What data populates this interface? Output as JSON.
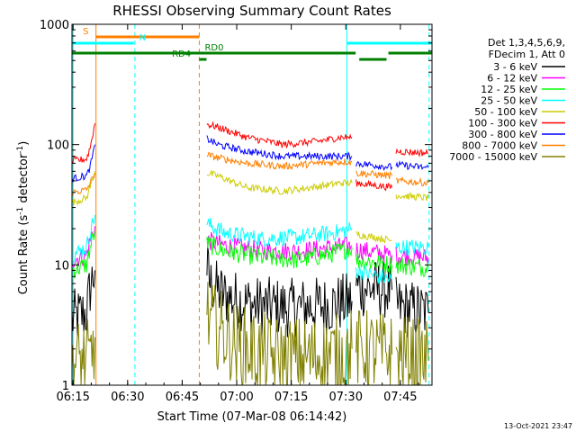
{
  "chart_data": {
    "type": "line",
    "title": "RHESSI Observing Summary Count Rates",
    "xlabel": "Start Time (07-Mar-08 06:14:42)",
    "ylabel_main": "Count Rate (s",
    "ylabel_sup": "-1",
    "ylabel_rest": " detector",
    "ylabel_sup2": "-1",
    "ylabel_end": ")",
    "x_unit": "minutes after 06:14:42",
    "xlim": [
      0,
      99
    ],
    "ylim": [
      1,
      1000
    ],
    "yscale": "log",
    "x_ticks": [
      {
        "t": 0.3,
        "label": "06:15"
      },
      {
        "t": 15.3,
        "label": "06:30"
      },
      {
        "t": 30.3,
        "label": "06:45"
      },
      {
        "t": 45.3,
        "label": "07:00"
      },
      {
        "t": 60.3,
        "label": "07:15"
      },
      {
        "t": 75.3,
        "label": "07:30"
      },
      {
        "t": 90.3,
        "label": "07:45"
      }
    ],
    "y_ticks": [
      {
        "v": 1,
        "label": "1"
      },
      {
        "v": 10,
        "label": "10"
      },
      {
        "v": 100,
        "label": "100"
      },
      {
        "v": 1000,
        "label": "1000"
      }
    ],
    "legend_header": [
      "Det 1,3,4,5,6,9,",
      "FDecim 1, Att 0"
    ],
    "series": [
      {
        "name": "3 - 6 keV",
        "color": "#000000",
        "noise": 0.25,
        "points": [
          [
            0,
            3.5
          ],
          [
            4,
            4.0
          ],
          [
            5,
            6.5
          ],
          [
            6.3,
            9.0
          ],
          [
            6.4,
            null
          ],
          [
            37.0,
            null
          ],
          [
            37.1,
            9.5
          ],
          [
            38,
            7.0
          ],
          [
            42,
            5.5
          ],
          [
            50,
            4.6
          ],
          [
            60,
            4.4
          ],
          [
            70,
            4.6
          ],
          [
            77,
            5.0
          ],
          [
            77.3,
            null
          ],
          [
            78,
            null
          ],
          [
            78.1,
            6.5
          ],
          [
            88,
            6.2
          ],
          [
            88.3,
            null
          ],
          [
            89,
            null
          ],
          [
            89.1,
            4.5
          ],
          [
            98,
            4.0
          ]
        ]
      },
      {
        "name": "6 - 12 keV",
        "color": "#ff00ff",
        "noise": 0.08,
        "points": [
          [
            0,
            11
          ],
          [
            4,
            12
          ],
          [
            5,
            16
          ],
          [
            6.3,
            21
          ],
          [
            6.4,
            null
          ],
          [
            37.0,
            null
          ],
          [
            37.1,
            16
          ],
          [
            42,
            14.5
          ],
          [
            52,
            13.2
          ],
          [
            62,
            13.0
          ],
          [
            72,
            14.0
          ],
          [
            77,
            14.5
          ],
          [
            77.3,
            null
          ],
          [
            78,
            null
          ],
          [
            78.1,
            13.5
          ],
          [
            88,
            12.0
          ],
          [
            88.3,
            null
          ],
          [
            89,
            null
          ],
          [
            89.1,
            12
          ],
          [
            98,
            11.5
          ]
        ]
      },
      {
        "name": "12 - 25 keV",
        "color": "#00ff00",
        "noise": 0.08,
        "points": [
          [
            0,
            9
          ],
          [
            4,
            10
          ],
          [
            5,
            14
          ],
          [
            6.3,
            19
          ],
          [
            6.4,
            null
          ],
          [
            37.0,
            null
          ],
          [
            37.1,
            15
          ],
          [
            42,
            13
          ],
          [
            52,
            11.5
          ],
          [
            62,
            11.0
          ],
          [
            72,
            12.5
          ],
          [
            77,
            14
          ],
          [
            77.3,
            null
          ],
          [
            78,
            null
          ],
          [
            78.1,
            11
          ],
          [
            88,
            10
          ],
          [
            88.3,
            null
          ],
          [
            89,
            null
          ],
          [
            89.1,
            10
          ],
          [
            98,
            9.5
          ]
        ]
      },
      {
        "name": "25 - 50 keV",
        "color": "#00ffff",
        "noise": 0.07,
        "points": [
          [
            0,
            12
          ],
          [
            4,
            14
          ],
          [
            5,
            19
          ],
          [
            6.3,
            26
          ],
          [
            6.4,
            null
          ],
          [
            37.0,
            null
          ],
          [
            37.1,
            22
          ],
          [
            42,
            18.5
          ],
          [
            52,
            16.5
          ],
          [
            62,
            17
          ],
          [
            72,
            18.5
          ],
          [
            77,
            20
          ],
          [
            77.3,
            null
          ],
          [
            78,
            null
          ],
          [
            78.1,
            9
          ],
          [
            88,
            7.5
          ],
          [
            88.3,
            null
          ],
          [
            89,
            null
          ],
          [
            89.1,
            14
          ],
          [
            98,
            14
          ]
        ]
      },
      {
        "name": "50 - 100 keV",
        "color": "#cccc00",
        "noise": 0.03,
        "points": [
          [
            0,
            33
          ],
          [
            4,
            36
          ],
          [
            5,
            45
          ],
          [
            6.3,
            60
          ],
          [
            6.4,
            null
          ],
          [
            37.0,
            null
          ],
          [
            37.1,
            58
          ],
          [
            40,
            55
          ],
          [
            48,
            44
          ],
          [
            58,
            41
          ],
          [
            68,
            45
          ],
          [
            74,
            48
          ],
          [
            77,
            48
          ],
          [
            77.3,
            null
          ],
          [
            78,
            null
          ],
          [
            78.1,
            18
          ],
          [
            88,
            16
          ],
          [
            88.3,
            null
          ],
          [
            89,
            null
          ],
          [
            89.1,
            38
          ],
          [
            98,
            36
          ]
        ]
      },
      {
        "name": "100 - 300 keV",
        "color": "#ff0000",
        "noise": 0.03,
        "points": [
          [
            0,
            73
          ],
          [
            4,
            76
          ],
          [
            5,
            95
          ],
          [
            6.3,
            150
          ],
          [
            6.4,
            null
          ],
          [
            37.0,
            null
          ],
          [
            37.1,
            148
          ],
          [
            40,
            140
          ],
          [
            48,
            115
          ],
          [
            58,
            100
          ],
          [
            68,
            107
          ],
          [
            74,
            115
          ],
          [
            77,
            115
          ],
          [
            77.3,
            null
          ],
          [
            78,
            null
          ],
          [
            78.1,
            48
          ],
          [
            88,
            44
          ],
          [
            88.3,
            null
          ],
          [
            89,
            null
          ],
          [
            89.1,
            88
          ],
          [
            98,
            85
          ]
        ]
      },
      {
        "name": "300 - 800 keV",
        "color": "#0000ff",
        "noise": 0.03,
        "points": [
          [
            0,
            52
          ],
          [
            4,
            55
          ],
          [
            5,
            65
          ],
          [
            6.3,
            100
          ],
          [
            6.4,
            null
          ],
          [
            37.0,
            null
          ],
          [
            37.1,
            112
          ],
          [
            40,
            100
          ],
          [
            48,
            88
          ],
          [
            58,
            80
          ],
          [
            68,
            80
          ],
          [
            74,
            80
          ],
          [
            77,
            80
          ],
          [
            77.3,
            null
          ],
          [
            78,
            null
          ],
          [
            78.1,
            70
          ],
          [
            88,
            65
          ],
          [
            88.3,
            null
          ],
          [
            89,
            null
          ],
          [
            89.1,
            68
          ],
          [
            98,
            64
          ]
        ]
      },
      {
        "name": "800 - 7000 keV",
        "color": "#ff8000",
        "noise": 0.03,
        "points": [
          [
            0,
            40
          ],
          [
            4,
            42
          ],
          [
            5,
            48
          ],
          [
            6.3,
            58
          ],
          [
            6.4,
            null
          ],
          [
            37.0,
            null
          ],
          [
            37.1,
            82
          ],
          [
            40,
            78
          ],
          [
            48,
            70
          ],
          [
            58,
            66
          ],
          [
            68,
            70
          ],
          [
            74,
            72
          ],
          [
            77,
            72
          ],
          [
            77.3,
            null
          ],
          [
            78,
            null
          ],
          [
            78.1,
            58
          ],
          [
            88,
            55
          ],
          [
            88.3,
            null
          ],
          [
            89,
            null
          ],
          [
            89.1,
            50
          ],
          [
            98,
            48
          ]
        ]
      },
      {
        "name": "7000 - 15000 keV",
        "color": "#808000",
        "noise": 0.35,
        "points": [
          [
            0,
            1.6
          ],
          [
            5,
            1.6
          ],
          [
            6.3,
            2.5
          ],
          [
            6.4,
            null
          ],
          [
            37.0,
            null
          ],
          [
            37.1,
            3.6
          ],
          [
            45,
            2.2
          ],
          [
            55,
            1.7
          ],
          [
            65,
            1.7
          ],
          [
            75,
            1.8
          ],
          [
            77,
            2.0
          ],
          [
            77.3,
            null
          ],
          [
            78,
            null
          ],
          [
            78.1,
            2.0
          ],
          [
            88,
            1.8
          ],
          [
            88.3,
            null
          ],
          [
            89,
            null
          ],
          [
            89.1,
            1.8
          ],
          [
            98,
            1.6
          ]
        ]
      }
    ],
    "state_bars": [
      {
        "label": "S",
        "color": "#ff8000",
        "t0": 6.5,
        "t1": 35.0,
        "level": 1,
        "label_t": 3.0
      },
      {
        "label": "N",
        "color": "#00ffff",
        "t0": 0.0,
        "t1": 17.0,
        "level": 2,
        "label_t": 18.5
      },
      {
        "label": "N",
        "color": "#00ffff",
        "t0": 75.5,
        "t1": 99.0,
        "level": 2,
        "label_t": null
      },
      {
        "label": "RD0",
        "color": "#008000",
        "t0": 0.0,
        "t1": 78.0,
        "level": 3,
        "label_t": 36.5
      },
      {
        "label": "RD0",
        "color": "#008000",
        "t0": 87.0,
        "t1": 99.0,
        "level": 3,
        "label_t": null
      },
      {
        "label": "RD4",
        "color": "#008000",
        "t0": 79.0,
        "t1": 86.5,
        "level": 4,
        "label_t": null
      },
      {
        "label": "RD4",
        "color": "#008000",
        "t0": 35.0,
        "t1": 37.0,
        "level": 4,
        "label_t": 27.5
      }
    ],
    "vlines": [
      {
        "t": 0.3,
        "color": "#00ffff",
        "style": "solid"
      },
      {
        "t": 6.6,
        "color": "#ff8000",
        "style": "solid"
      },
      {
        "t": 17.3,
        "color": "#00ffff",
        "style": "dashed"
      },
      {
        "t": 35.0,
        "color": "#ff8000",
        "style": "dashed"
      },
      {
        "t": 75.6,
        "color": "#00ffff",
        "style": "solid"
      },
      {
        "t": 98.2,
        "color": "#00ffff",
        "style": "dashed"
      }
    ],
    "grid": false,
    "legend_position": "right"
  },
  "footer": {
    "timestamp": "13-Oct-2021 23:47"
  }
}
